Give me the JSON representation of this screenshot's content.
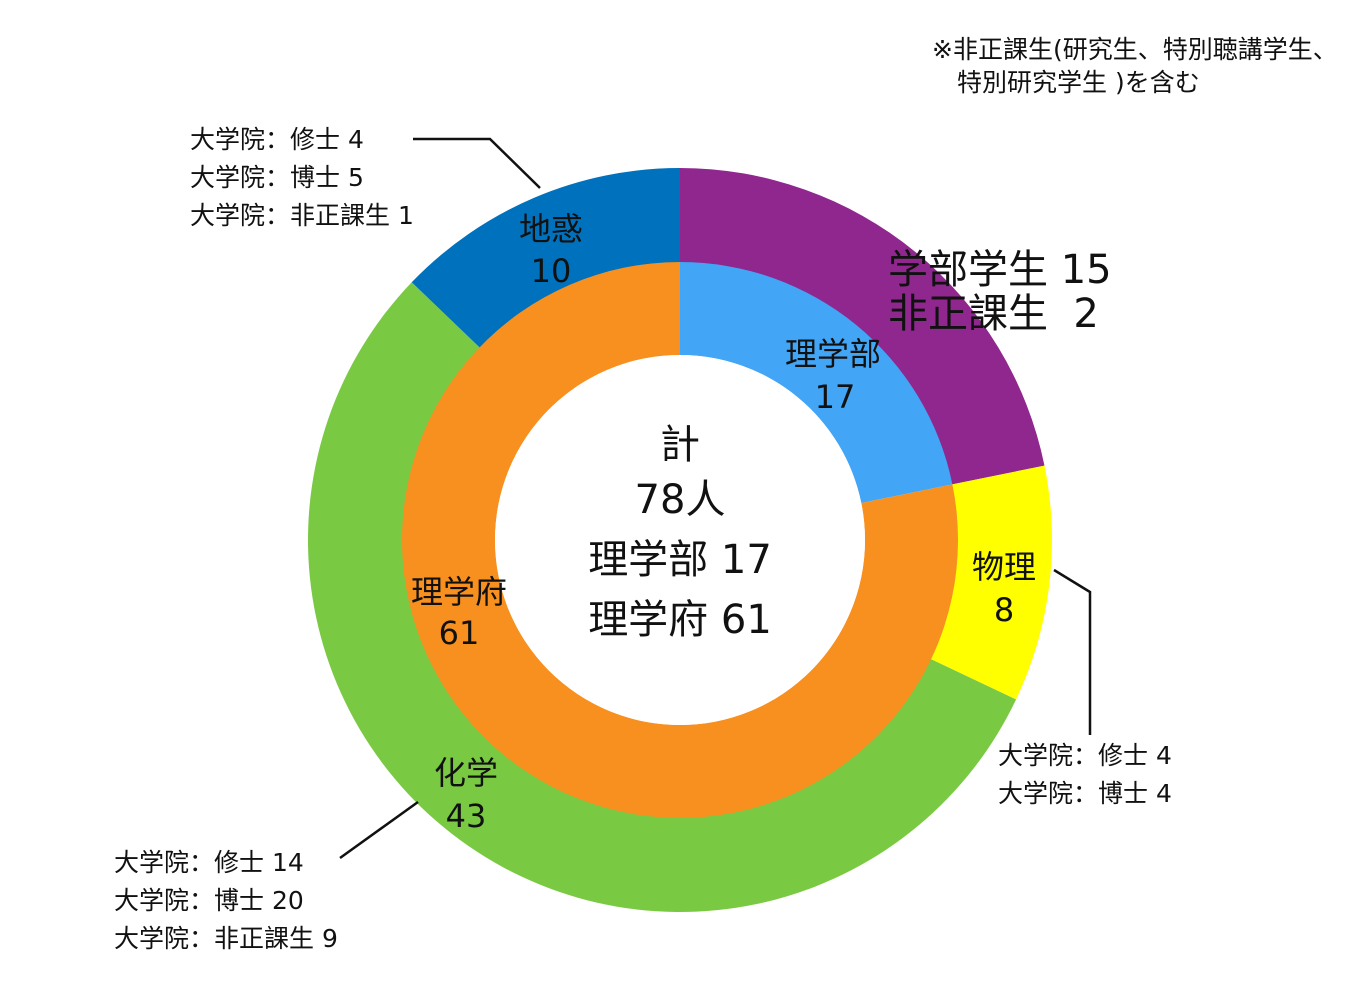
{
  "chart_data": {
    "type": "pie",
    "note_lines": [
      "※非正課生(研究生、特別聴講学生、",
      "特別研究学生 )を含む"
    ],
    "center_lines": [
      "計",
      "78人",
      "理学部 17",
      "理学府 61"
    ],
    "inner_ring": [
      {
        "name": "理学部",
        "value": 17,
        "color": "#42A5F5"
      },
      {
        "name": "理学府",
        "value": 61,
        "color": "#F7901E"
      }
    ],
    "outer_ring": [
      {
        "name": "学部",
        "value": 17,
        "color": "#90278E",
        "label": [
          "学部学生 15",
          "非正課生  2"
        ]
      },
      {
        "name": "物理",
        "value": 8,
        "color": "#FFFF00",
        "label": [
          "物理",
          "8"
        ]
      },
      {
        "name": "化学",
        "value": 43,
        "color": "#7AC943",
        "label": [
          "化学",
          "43"
        ]
      },
      {
        "name": "地惑",
        "value": 10,
        "color": "#0071BC",
        "label": [
          "地惑",
          "10"
        ]
      }
    ],
    "inner_labels": [
      {
        "name": "理学部",
        "lines": [
          "理学部",
          "17"
        ]
      },
      {
        "name": "理学府",
        "lines": [
          "理学府",
          "61"
        ]
      }
    ],
    "callouts": {
      "chikyu": [
        "大学院：修士 4",
        "大学院：博士 5",
        "大学院：非正課生 1"
      ],
      "butsuri": [
        "大学院：修士 4",
        "大学院：博士 4"
      ],
      "kagaku": [
        "大学院：修士 14",
        "大学院：博士 20",
        "大学院：非正課生 9"
      ]
    }
  }
}
